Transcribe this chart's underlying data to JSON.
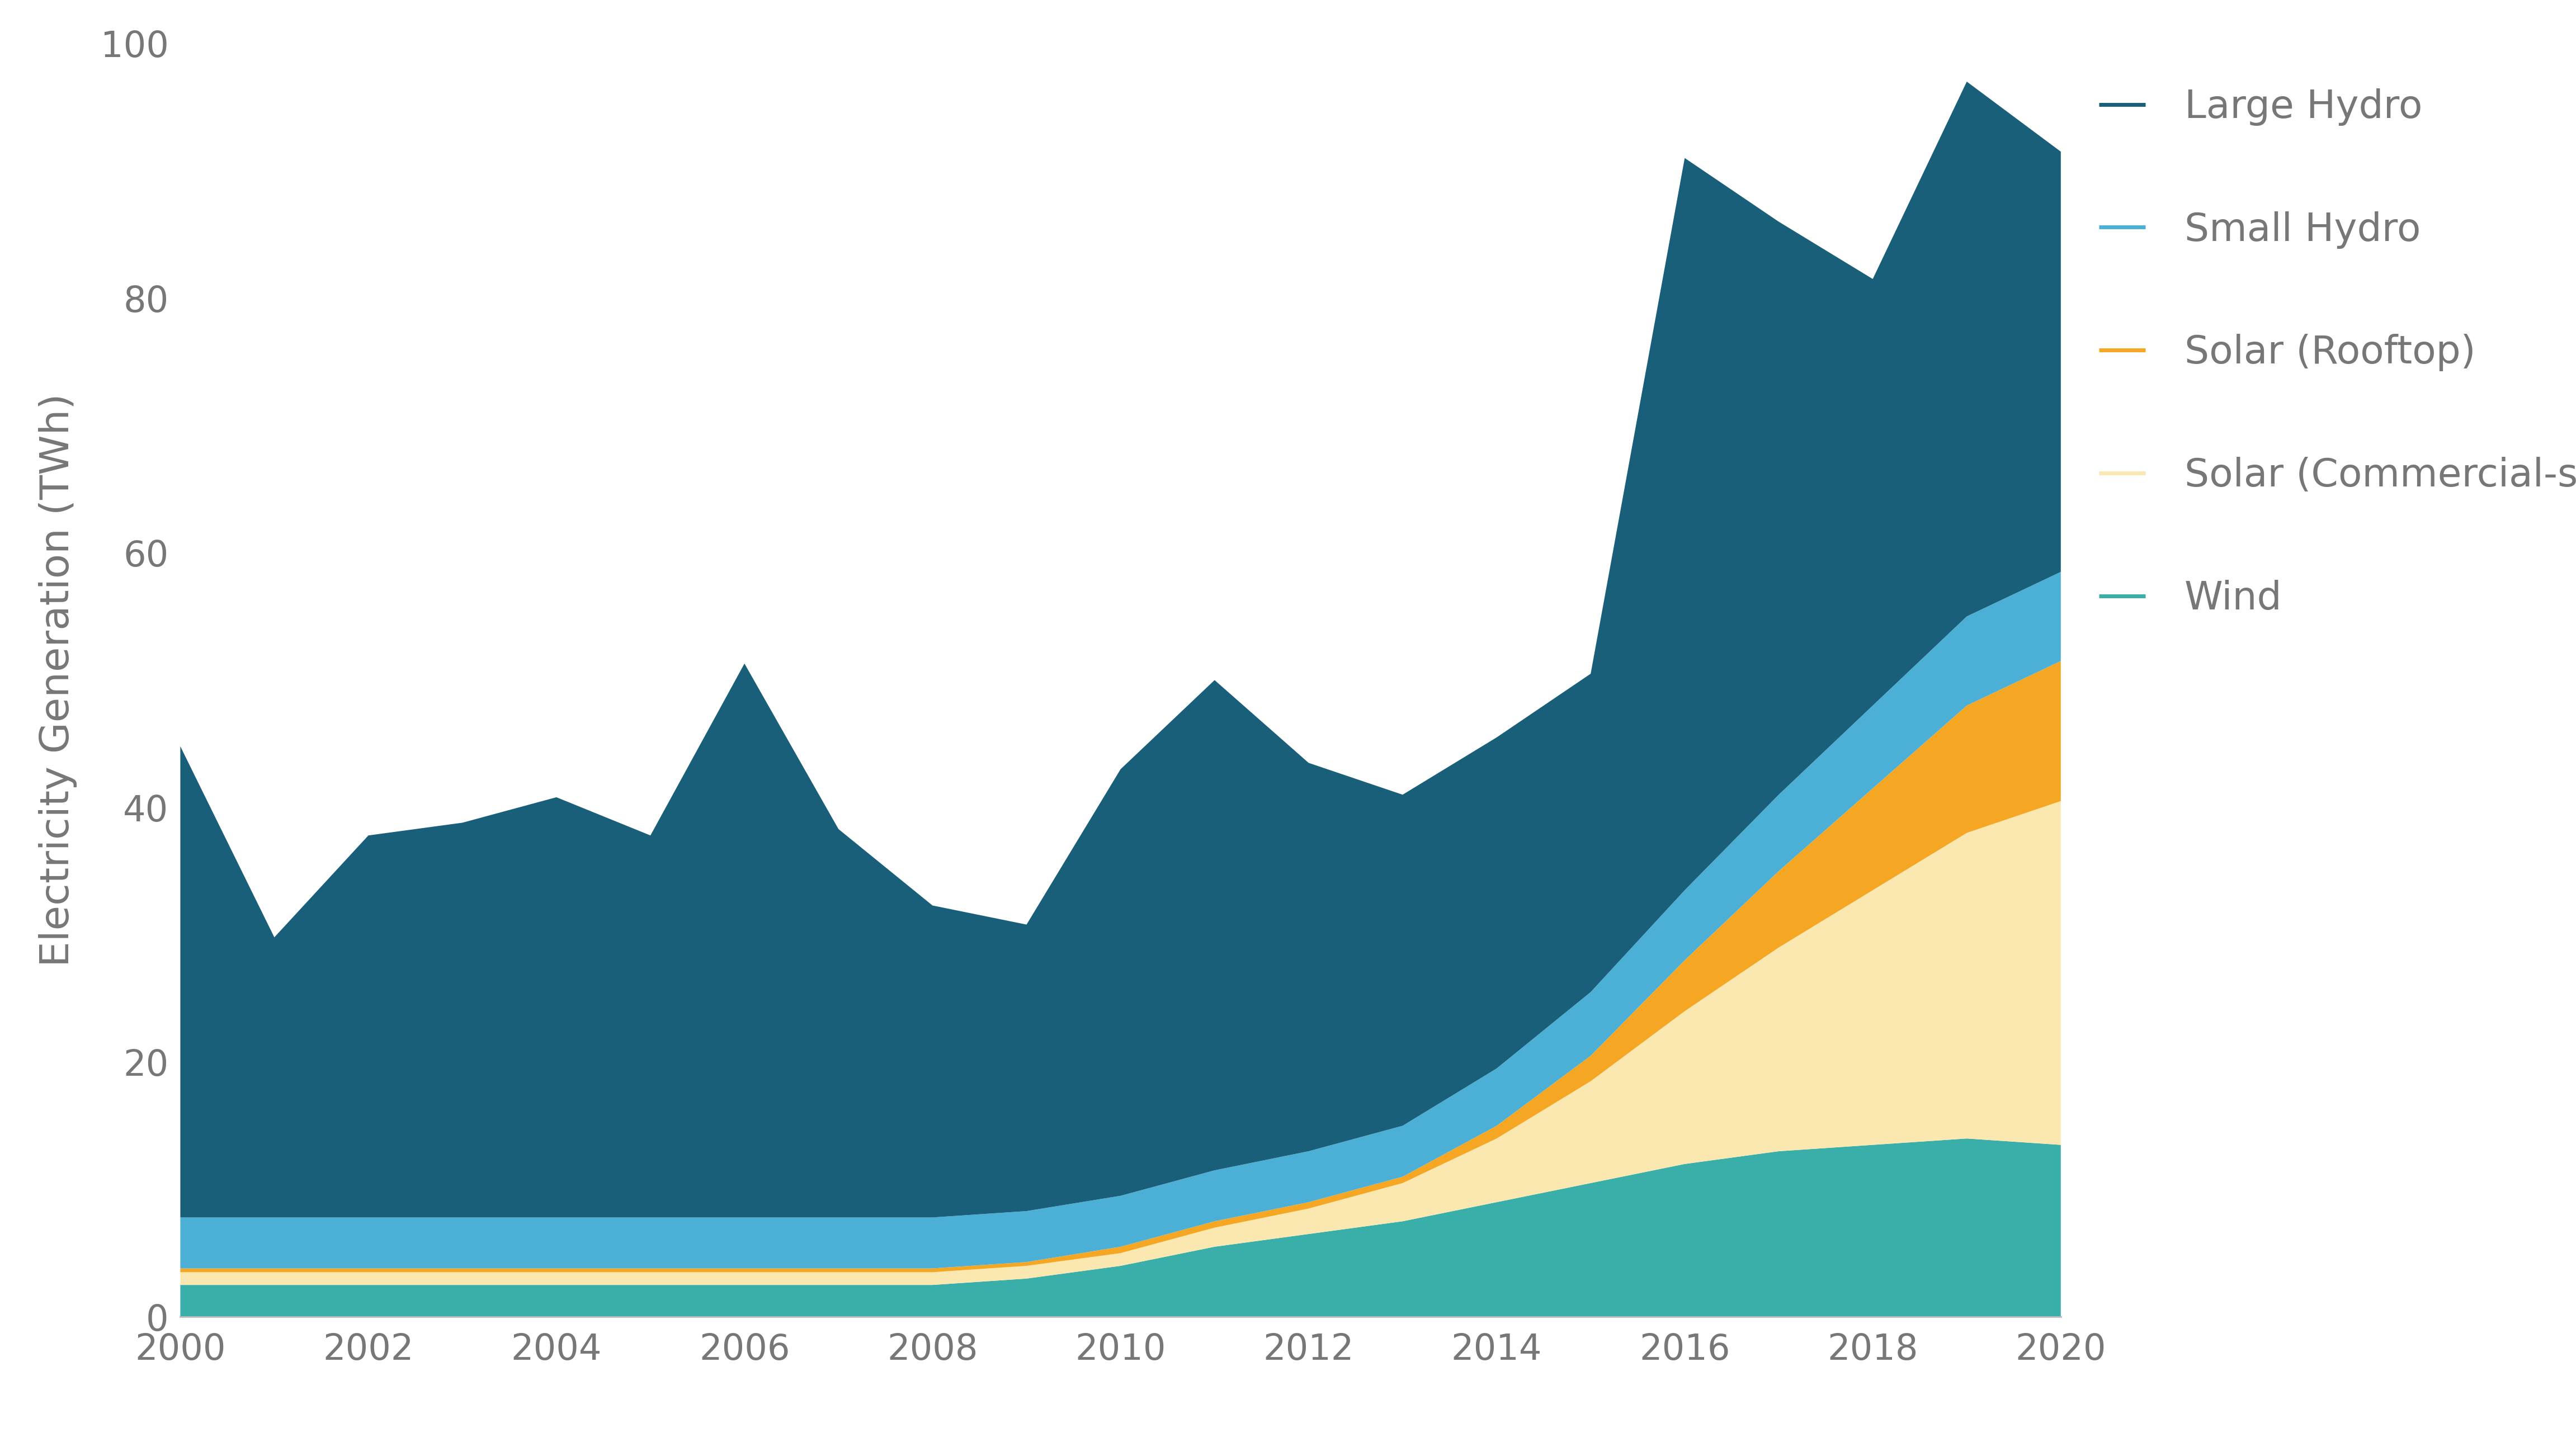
{
  "years": [
    2000,
    2001,
    2002,
    2003,
    2004,
    2005,
    2006,
    2007,
    2008,
    2009,
    2010,
    2011,
    2012,
    2013,
    2014,
    2015,
    2016,
    2017,
    2018,
    2019,
    2020
  ],
  "wind": [
    2.5,
    2.5,
    2.5,
    2.5,
    2.5,
    2.5,
    2.5,
    2.5,
    2.5,
    3.0,
    4.0,
    5.5,
    6.5,
    7.5,
    9.0,
    10.5,
    12.0,
    13.0,
    13.5,
    14.0,
    13.5
  ],
  "solar_commercial": [
    1.0,
    1.0,
    1.0,
    1.0,
    1.0,
    1.0,
    1.0,
    1.0,
    1.0,
    1.0,
    1.0,
    1.5,
    2.0,
    3.0,
    5.0,
    8.0,
    12.0,
    16.0,
    20.0,
    24.0,
    27.0
  ],
  "solar_rooftop": [
    0.3,
    0.3,
    0.3,
    0.3,
    0.3,
    0.3,
    0.3,
    0.3,
    0.3,
    0.3,
    0.5,
    0.5,
    0.5,
    0.5,
    1.0,
    2.0,
    4.0,
    6.0,
    8.0,
    10.0,
    11.0
  ],
  "small_hydro": [
    4.0,
    4.0,
    4.0,
    4.0,
    4.0,
    4.0,
    4.0,
    4.0,
    4.0,
    4.0,
    4.0,
    4.0,
    4.0,
    4.0,
    4.5,
    5.0,
    5.5,
    6.0,
    6.5,
    7.0,
    7.0
  ],
  "large_hydro": [
    37.0,
    22.0,
    30.0,
    31.0,
    33.0,
    30.0,
    43.5,
    30.5,
    24.5,
    22.5,
    33.5,
    38.5,
    30.5,
    26.0,
    26.0,
    25.0,
    57.5,
    45.0,
    33.5,
    42.0,
    33.0
  ],
  "colors": {
    "wind": "#3aafa9",
    "solar_commercial": "#fbe8b0",
    "solar_rooftop": "#f5a623",
    "small_hydro": "#4bafd6",
    "large_hydro": "#1a5f7a"
  },
  "legend_items": [
    {
      "label": "Large Hydro",
      "color": "#1a5f7a"
    },
    {
      "label": "Small Hydro",
      "color": "#4bafd6"
    },
    {
      "label": "Solar (Rooftop)",
      "color": "#f5a623"
    },
    {
      "label": "Solar (Commercial-scale)",
      "color": "#fbe8b0"
    },
    {
      "label": "Wind",
      "color": "#3aafa9"
    }
  ],
  "ylabel": "Electricity Generation (TWh)",
  "ylim": [
    0,
    100
  ],
  "xlim": [
    2000,
    2020
  ],
  "background_color": "#ffffff",
  "text_color": "#777777",
  "label_fontsize": 52,
  "tick_fontsize": 46,
  "legend_fontsize": 50
}
